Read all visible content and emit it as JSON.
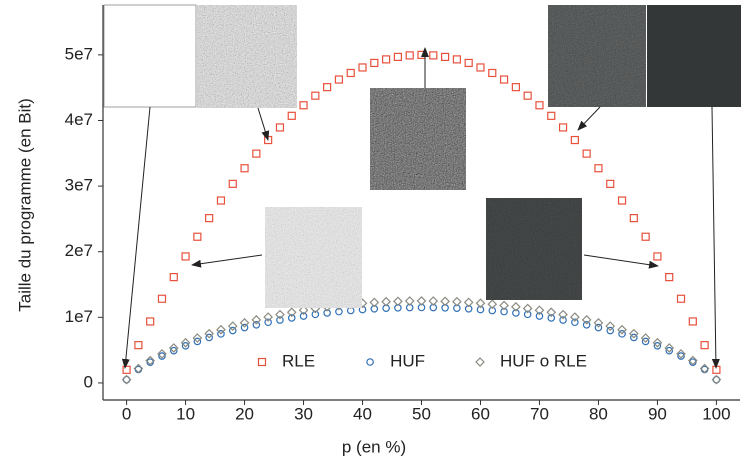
{
  "chart_data": {
    "type": "scatter",
    "xlabel": "p (en %)",
    "ylabel": "Taille du programme (en Bit)",
    "x": [
      0,
      2,
      4,
      6,
      8,
      10,
      12,
      14,
      16,
      18,
      20,
      22,
      24,
      26,
      28,
      30,
      32,
      34,
      36,
      38,
      40,
      42,
      44,
      46,
      48,
      50,
      52,
      54,
      56,
      58,
      60,
      62,
      64,
      66,
      68,
      70,
      72,
      74,
      76,
      78,
      80,
      82,
      84,
      86,
      88,
      90,
      92,
      94,
      96,
      98,
      100
    ],
    "series": [
      {
        "name": "RLE",
        "color": "#e8503c",
        "marker": "square",
        "values": [
          2000000,
          5760000,
          9370000,
          12830000,
          16130000,
          19280000,
          22280000,
          25120000,
          27800000,
          30340000,
          32720000,
          34950000,
          37020000,
          38940000,
          40710000,
          42320000,
          43780000,
          45080000,
          46240000,
          47240000,
          48080000,
          48770000,
          49310000,
          49690000,
          49920000,
          50000000,
          49920000,
          49690000,
          49310000,
          48770000,
          48080000,
          47240000,
          46240000,
          45080000,
          43780000,
          42320000,
          40710000,
          38940000,
          37020000,
          34950000,
          32720000,
          30340000,
          27800000,
          25120000,
          22280000,
          19280000,
          16130000,
          12830000,
          9370000,
          5760000,
          2000000
        ]
      },
      {
        "name": "HUF",
        "color": "#2f6fb5",
        "marker": "circle",
        "values": [
          500000,
          2060000,
          3170000,
          4100000,
          4920000,
          5660000,
          6320000,
          6930000,
          7480000,
          7980000,
          8440000,
          8860000,
          9250000,
          9590000,
          9910000,
          10190000,
          10450000,
          10670000,
          10870000,
          11040000,
          11180000,
          11300000,
          11390000,
          11450000,
          11490000,
          11500000,
          11490000,
          11450000,
          11390000,
          11300000,
          11180000,
          11040000,
          10870000,
          10670000,
          10450000,
          10190000,
          9910000,
          9590000,
          9250000,
          8860000,
          8440000,
          7980000,
          7480000,
          6930000,
          6320000,
          5660000,
          4920000,
          4100000,
          3170000,
          2060000,
          500000
        ]
      },
      {
        "name": "HUF o RLE",
        "color": "#8a8a80",
        "marker": "diamond",
        "values": [
          500000,
          2200000,
          3410000,
          4430000,
          5330000,
          6130000,
          6850000,
          7510000,
          8110000,
          8660000,
          9160000,
          9620000,
          10040000,
          10420000,
          10770000,
          11080000,
          11350000,
          11600000,
          11810000,
          12000000,
          12150000,
          12280000,
          12380000,
          12440000,
          12490000,
          12500000,
          12490000,
          12440000,
          12380000,
          12280000,
          12150000,
          12000000,
          11810000,
          11600000,
          11350000,
          11080000,
          10770000,
          10420000,
          10040000,
          9620000,
          9160000,
          8660000,
          8110000,
          7510000,
          6850000,
          6130000,
          5330000,
          4430000,
          3410000,
          2200000,
          500000
        ]
      }
    ],
    "xlim": [
      -4,
      104
    ],
    "ylim": [
      -2600000,
      57600000
    ],
    "xticks": [
      0,
      10,
      20,
      30,
      40,
      50,
      60,
      70,
      80,
      90,
      100
    ],
    "yticks": [
      0,
      {
        "value": 10000000,
        "label": "1e7"
      },
      {
        "value": 20000000,
        "label": "2e7"
      },
      {
        "value": 30000000,
        "label": "3e7"
      },
      {
        "value": 40000000,
        "label": "4e7"
      },
      {
        "value": 50000000,
        "label": "5e7"
      }
    ],
    "legend": "lower center",
    "grid": false
  }
}
